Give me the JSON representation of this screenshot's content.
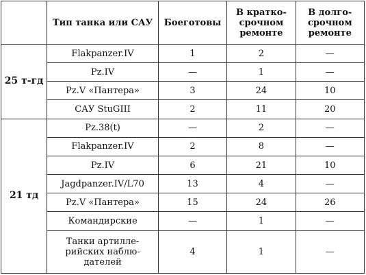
{
  "headers": [
    "",
    "Тип танка или САУ",
    "Боеготовы",
    "В кратко-срочном ремонте",
    "В долго-срочном ремонте"
  ],
  "groups": [
    {
      "unit": "25 т-гд",
      "rows": [
        [
          "Flakpanzer.IV",
          "1",
          "2",
          "—"
        ],
        [
          "Pz.IV",
          "—",
          "1",
          "—"
        ],
        [
          "Pz.V «Пантера»",
          "3",
          "24",
          "10"
        ],
        [
          "САУ StuGIII",
          "2",
          "11",
          "20"
        ]
      ]
    },
    {
      "unit": "21 тд",
      "rows": [
        [
          "Pz.38(t)",
          "—",
          "2",
          "—"
        ],
        [
          "Flakpanzer.IV",
          "2",
          "8",
          "—"
        ],
        [
          "Pz.IV",
          "6",
          "21",
          "10"
        ],
        [
          "Jagdpanzer.IV/L70",
          "13",
          "4",
          "—"
        ],
        [
          "Pz.V «Пантера»",
          "15",
          "24",
          "26"
        ],
        [
          "Командирские",
          "—",
          "1",
          "—"
        ],
        [
          "Танки артилле-рийских наблю-дателей",
          "4",
          "1",
          "—"
        ]
      ]
    }
  ]
}
